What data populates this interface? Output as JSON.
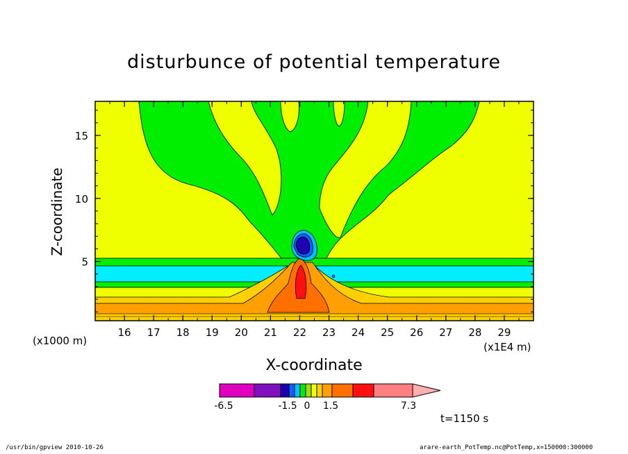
{
  "chart_data": {
    "type": "heatmap",
    "title": "disturbunce of potential temperature",
    "xlabel": "X-coordinate",
    "ylabel": "Z-coordinate",
    "x_unit_left": "(x1000 m)",
    "x_unit_right": "(x1E4 m)",
    "xlim": [
      15.0,
      30.0
    ],
    "ylim": [
      0.3,
      17.7
    ],
    "xticks": [
      16,
      17,
      18,
      19,
      20,
      21,
      22,
      23,
      24,
      25,
      26,
      27,
      28,
      29
    ],
    "yticks": [
      5,
      10,
      15
    ],
    "time_label": "t=1150 s",
    "colorbar": {
      "labels": [
        {
          "text": "-6.5",
          "value": -6.5
        },
        {
          "text": "-1.5",
          "value": -1.5
        },
        {
          "text": "0",
          "value": 0
        },
        {
          "text": "1.5",
          "value": 1.5
        },
        {
          "text": "7.3",
          "value": 7.3
        }
      ],
      "colors": [
        "#e000c0",
        "#8010c0",
        "#2000b0",
        "#1060ff",
        "#00c0ff",
        "#00ee00",
        "#a0e000",
        "#f0ff00",
        "#ffd000",
        "#ffa000",
        "#ff7000",
        "#ff1010",
        "#ff8080",
        "#ffb0b0"
      ]
    },
    "background_value_color": "#f0ff00"
  },
  "footer": {
    "left": "/usr/bin/gpview  2010-10-26",
    "right": "arare-earth_PotTemp.nc@PotTemp,x=150000:300000"
  }
}
